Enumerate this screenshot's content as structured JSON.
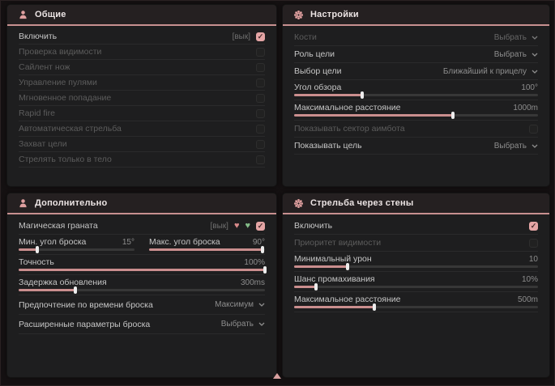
{
  "colors": {
    "accent": "#ca8e8e",
    "header_underline": "#c89090",
    "checkbox_checked": "#e4a5a5",
    "panel_bg": "#1e1e1f",
    "page_bg": "#151112"
  },
  "footer": {
    "scroll_indicator": "up-triangle-icon"
  },
  "panels": {
    "general": {
      "title": "Общие",
      "icon": "person-icon",
      "rows": [
        {
          "label": "Включить",
          "control": "checkbox",
          "hotkey_tag": "[вык]",
          "checked": true,
          "enabled": true
        },
        {
          "label": "Проверка видимости",
          "control": "checkbox",
          "checked": false,
          "enabled": false
        },
        {
          "label": "Сайлент нож",
          "control": "checkbox",
          "checked": false,
          "enabled": false
        },
        {
          "label": "Управление пулями",
          "control": "checkbox",
          "checked": false,
          "enabled": false
        },
        {
          "label": "Мгновенное попадание",
          "control": "checkbox",
          "checked": false,
          "enabled": false
        },
        {
          "label": "Rapid fire",
          "control": "checkbox",
          "checked": false,
          "enabled": false
        },
        {
          "label": "Автоматическая стрельба",
          "control": "checkbox",
          "checked": false,
          "enabled": false
        },
        {
          "label": "Захват цели",
          "control": "checkbox",
          "checked": false,
          "enabled": false
        },
        {
          "label": "Стрелять только в тело",
          "control": "checkbox",
          "checked": false,
          "enabled": false
        }
      ]
    },
    "settings": {
      "title": "Настройки",
      "icon": "gear-icon",
      "rows": [
        {
          "label": "Кости",
          "control": "select",
          "value": "Выбрать",
          "enabled": false
        },
        {
          "label": "Роль цели",
          "control": "select",
          "value": "Выбрать",
          "enabled": true
        },
        {
          "label": "Выбор цели",
          "control": "select",
          "value": "Ближайший к прицелу",
          "enabled": true
        },
        {
          "label": "Угол обзора",
          "control": "slider",
          "value": "100°",
          "fill": 28
        },
        {
          "label": "Максимальное расстояние",
          "control": "slider",
          "value": "1000m",
          "fill": 65
        },
        {
          "label": "Показывать сектор аимбота",
          "control": "checkbox",
          "checked": false,
          "enabled": false
        },
        {
          "label": "Показывать цель",
          "control": "select",
          "value": "Выбрать",
          "enabled": true
        }
      ]
    },
    "additional": {
      "title": "Дополнительно",
      "icon": "person-icon",
      "rows": [
        {
          "label": "Магическая граната",
          "control": "checkbox",
          "hotkey_tag": "[вык]",
          "badges": [
            "broken-heart-icon",
            "green-heart-icon"
          ],
          "checked": true,
          "enabled": true
        },
        {
          "control": "slider-pair",
          "left": {
            "label": "Мин. угол броска",
            "value": "15°",
            "fill": 16
          },
          "right": {
            "label": "Макс. угол броска",
            "value": "90°",
            "fill": 98
          }
        },
        {
          "label": "Точность",
          "control": "slider",
          "value": "100%",
          "fill": 100
        },
        {
          "label": "Задержка обновления",
          "control": "slider",
          "value": "300ms",
          "fill": 23
        },
        {
          "label": "Предпочтение по времени броска",
          "control": "select",
          "value": "Максимум",
          "enabled": true
        },
        {
          "label": "Расширенные параметры броска",
          "control": "select",
          "value": "Выбрать",
          "enabled": true
        }
      ]
    },
    "wallbang": {
      "title": "Стрельба через стены",
      "icon": "gear-icon",
      "rows": [
        {
          "label": "Включить",
          "control": "checkbox",
          "checked": true,
          "enabled": true
        },
        {
          "label": "Приоритет видимости",
          "control": "checkbox",
          "checked": false,
          "enabled": false
        },
        {
          "label": "Минимальный урон",
          "control": "slider",
          "value": "10",
          "fill": 22
        },
        {
          "label": "Шанс промахивания",
          "control": "slider",
          "value": "10%",
          "fill": 9
        },
        {
          "label": "Максимальное расстояние",
          "control": "slider",
          "value": "500m",
          "fill": 33
        }
      ]
    }
  }
}
